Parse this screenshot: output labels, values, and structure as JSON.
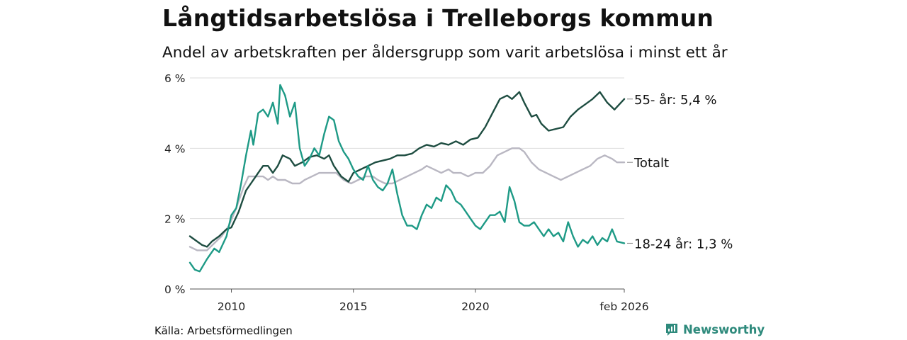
{
  "title": "Långtidsarbetslösa i Trelleborgs kommun",
  "subtitle": "Andel av arbetskraften per åldersgrupp som varit arbetslösa i minst ett år",
  "source": "Källa: Arbetsförmedlingen",
  "brand": "Newsworthy",
  "colors": {
    "age55": "#1e4d41",
    "total": "#b9b7c2",
    "age1824": "#1e9a86",
    "grid": "#dddddd",
    "brand": "#2e8a7c"
  },
  "chart_data": {
    "type": "line",
    "xlabel": "",
    "ylabel": "",
    "ylim": [
      0,
      6
    ],
    "xlim": [
      2008.3,
      2026.1
    ],
    "grid": true,
    "y_ticks": [
      0,
      2,
      4,
      6
    ],
    "y_tick_labels": [
      "0 %",
      "2 %",
      "4 %",
      "6 %"
    ],
    "x_ticks": [
      2010,
      2015,
      2020,
      2026.1
    ],
    "x_tick_labels": [
      "2010",
      "2015",
      "2020",
      "feb 2026"
    ],
    "series": [
      {
        "name": "Totalt",
        "end_label": "Totalt",
        "color": "#b9b7c2",
        "points": [
          [
            2008.3,
            1.2
          ],
          [
            2008.6,
            1.1
          ],
          [
            2009.0,
            1.1
          ],
          [
            2009.3,
            1.3
          ],
          [
            2009.6,
            1.5
          ],
          [
            2009.9,
            1.8
          ],
          [
            2010.2,
            2.3
          ],
          [
            2010.5,
            2.9
          ],
          [
            2010.7,
            3.2
          ],
          [
            2011.0,
            3.2
          ],
          [
            2011.3,
            3.2
          ],
          [
            2011.5,
            3.1
          ],
          [
            2011.7,
            3.2
          ],
          [
            2011.9,
            3.1
          ],
          [
            2012.2,
            3.1
          ],
          [
            2012.5,
            3.0
          ],
          [
            2012.8,
            3.0
          ],
          [
            2013.0,
            3.1
          ],
          [
            2013.3,
            3.2
          ],
          [
            2013.6,
            3.3
          ],
          [
            2014.0,
            3.3
          ],
          [
            2014.3,
            3.3
          ],
          [
            2014.6,
            3.1
          ],
          [
            2014.9,
            3.0
          ],
          [
            2015.2,
            3.1
          ],
          [
            2015.5,
            3.2
          ],
          [
            2015.8,
            3.2
          ],
          [
            2016.0,
            3.1
          ],
          [
            2016.3,
            3.0
          ],
          [
            2016.6,
            3.0
          ],
          [
            2016.9,
            3.1
          ],
          [
            2017.2,
            3.2
          ],
          [
            2017.5,
            3.3
          ],
          [
            2017.8,
            3.4
          ],
          [
            2018.0,
            3.5
          ],
          [
            2018.3,
            3.4
          ],
          [
            2018.6,
            3.3
          ],
          [
            2018.9,
            3.4
          ],
          [
            2019.1,
            3.3
          ],
          [
            2019.4,
            3.3
          ],
          [
            2019.7,
            3.2
          ],
          [
            2020.0,
            3.3
          ],
          [
            2020.3,
            3.3
          ],
          [
            2020.6,
            3.5
          ],
          [
            2020.9,
            3.8
          ],
          [
            2021.2,
            3.9
          ],
          [
            2021.5,
            4.0
          ],
          [
            2021.8,
            4.0
          ],
          [
            2022.0,
            3.9
          ],
          [
            2022.3,
            3.6
          ],
          [
            2022.6,
            3.4
          ],
          [
            2022.9,
            3.3
          ],
          [
            2023.2,
            3.2
          ],
          [
            2023.5,
            3.1
          ],
          [
            2023.8,
            3.2
          ],
          [
            2024.1,
            3.3
          ],
          [
            2024.4,
            3.4
          ],
          [
            2024.7,
            3.5
          ],
          [
            2025.0,
            3.7
          ],
          [
            2025.3,
            3.8
          ],
          [
            2025.6,
            3.7
          ],
          [
            2025.8,
            3.6
          ],
          [
            2026.1,
            3.6
          ]
        ]
      },
      {
        "name": "55- år",
        "end_label": "55- år: 5,4 %",
        "color": "#1e4d41",
        "points": [
          [
            2008.3,
            1.5
          ],
          [
            2008.5,
            1.4
          ],
          [
            2008.8,
            1.25
          ],
          [
            2009.0,
            1.2
          ],
          [
            2009.2,
            1.35
          ],
          [
            2009.5,
            1.5
          ],
          [
            2009.8,
            1.7
          ],
          [
            2010.0,
            1.75
          ],
          [
            2010.3,
            2.2
          ],
          [
            2010.6,
            2.8
          ],
          [
            2010.8,
            3.0
          ],
          [
            2011.1,
            3.3
          ],
          [
            2011.3,
            3.5
          ],
          [
            2011.5,
            3.5
          ],
          [
            2011.7,
            3.3
          ],
          [
            2011.9,
            3.5
          ],
          [
            2012.1,
            3.8
          ],
          [
            2012.4,
            3.7
          ],
          [
            2012.6,
            3.5
          ],
          [
            2012.9,
            3.6
          ],
          [
            2013.2,
            3.75
          ],
          [
            2013.5,
            3.8
          ],
          [
            2013.8,
            3.7
          ],
          [
            2014.0,
            3.8
          ],
          [
            2014.2,
            3.5
          ],
          [
            2014.5,
            3.2
          ],
          [
            2014.8,
            3.05
          ],
          [
            2015.0,
            3.3
          ],
          [
            2015.3,
            3.4
          ],
          [
            2015.6,
            3.5
          ],
          [
            2015.9,
            3.6
          ],
          [
            2016.2,
            3.65
          ],
          [
            2016.5,
            3.7
          ],
          [
            2016.8,
            3.8
          ],
          [
            2017.1,
            3.8
          ],
          [
            2017.4,
            3.85
          ],
          [
            2017.7,
            4.0
          ],
          [
            2018.0,
            4.1
          ],
          [
            2018.3,
            4.05
          ],
          [
            2018.6,
            4.15
          ],
          [
            2018.9,
            4.1
          ],
          [
            2019.2,
            4.2
          ],
          [
            2019.5,
            4.1
          ],
          [
            2019.8,
            4.25
          ],
          [
            2020.1,
            4.3
          ],
          [
            2020.4,
            4.6
          ],
          [
            2020.7,
            5.0
          ],
          [
            2021.0,
            5.4
          ],
          [
            2021.3,
            5.5
          ],
          [
            2021.5,
            5.4
          ],
          [
            2021.8,
            5.6
          ],
          [
            2022.0,
            5.3
          ],
          [
            2022.3,
            4.9
          ],
          [
            2022.5,
            4.95
          ],
          [
            2022.7,
            4.7
          ],
          [
            2023.0,
            4.5
          ],
          [
            2023.3,
            4.55
          ],
          [
            2023.6,
            4.6
          ],
          [
            2023.9,
            4.9
          ],
          [
            2024.2,
            5.1
          ],
          [
            2024.5,
            5.25
          ],
          [
            2024.8,
            5.4
          ],
          [
            2025.1,
            5.6
          ],
          [
            2025.4,
            5.3
          ],
          [
            2025.7,
            5.1
          ],
          [
            2026.1,
            5.4
          ]
        ]
      },
      {
        "name": "18-24 år",
        "end_label": "18-24 år: 1,3 %",
        "color": "#1e9a86",
        "points": [
          [
            2008.3,
            0.75
          ],
          [
            2008.5,
            0.55
          ],
          [
            2008.7,
            0.5
          ],
          [
            2009.0,
            0.85
          ],
          [
            2009.3,
            1.15
          ],
          [
            2009.5,
            1.05
          ],
          [
            2009.8,
            1.5
          ],
          [
            2010.0,
            2.1
          ],
          [
            2010.2,
            2.3
          ],
          [
            2010.4,
            3.0
          ],
          [
            2010.6,
            3.8
          ],
          [
            2010.8,
            4.5
          ],
          [
            2010.9,
            4.1
          ],
          [
            2011.1,
            5.0
          ],
          [
            2011.3,
            5.1
          ],
          [
            2011.5,
            4.9
          ],
          [
            2011.7,
            5.3
          ],
          [
            2011.9,
            4.7
          ],
          [
            2012.0,
            5.8
          ],
          [
            2012.2,
            5.5
          ],
          [
            2012.4,
            4.9
          ],
          [
            2012.6,
            5.3
          ],
          [
            2012.8,
            4.0
          ],
          [
            2013.0,
            3.5
          ],
          [
            2013.2,
            3.7
          ],
          [
            2013.4,
            4.0
          ],
          [
            2013.6,
            3.8
          ],
          [
            2013.8,
            4.4
          ],
          [
            2014.0,
            4.9
          ],
          [
            2014.2,
            4.8
          ],
          [
            2014.4,
            4.2
          ],
          [
            2014.6,
            3.9
          ],
          [
            2014.8,
            3.7
          ],
          [
            2015.0,
            3.4
          ],
          [
            2015.2,
            3.2
          ],
          [
            2015.4,
            3.1
          ],
          [
            2015.6,
            3.5
          ],
          [
            2015.8,
            3.1
          ],
          [
            2016.0,
            2.9
          ],
          [
            2016.2,
            2.8
          ],
          [
            2016.4,
            3.0
          ],
          [
            2016.6,
            3.4
          ],
          [
            2016.8,
            2.7
          ],
          [
            2017.0,
            2.1
          ],
          [
            2017.2,
            1.8
          ],
          [
            2017.4,
            1.8
          ],
          [
            2017.6,
            1.7
          ],
          [
            2017.8,
            2.1
          ],
          [
            2018.0,
            2.4
          ],
          [
            2018.2,
            2.3
          ],
          [
            2018.4,
            2.6
          ],
          [
            2018.6,
            2.5
          ],
          [
            2018.8,
            2.95
          ],
          [
            2019.0,
            2.8
          ],
          [
            2019.2,
            2.5
          ],
          [
            2019.4,
            2.4
          ],
          [
            2019.6,
            2.2
          ],
          [
            2019.8,
            2.0
          ],
          [
            2020.0,
            1.8
          ],
          [
            2020.2,
            1.7
          ],
          [
            2020.4,
            1.9
          ],
          [
            2020.6,
            2.1
          ],
          [
            2020.8,
            2.1
          ],
          [
            2021.0,
            2.2
          ],
          [
            2021.2,
            1.9
          ],
          [
            2021.4,
            2.9
          ],
          [
            2021.6,
            2.5
          ],
          [
            2021.8,
            1.9
          ],
          [
            2022.0,
            1.8
          ],
          [
            2022.2,
            1.8
          ],
          [
            2022.4,
            1.9
          ],
          [
            2022.6,
            1.7
          ],
          [
            2022.8,
            1.5
          ],
          [
            2023.0,
            1.7
          ],
          [
            2023.2,
            1.5
          ],
          [
            2023.4,
            1.6
          ],
          [
            2023.6,
            1.35
          ],
          [
            2023.8,
            1.9
          ],
          [
            2024.0,
            1.5
          ],
          [
            2024.2,
            1.2
          ],
          [
            2024.4,
            1.4
          ],
          [
            2024.6,
            1.3
          ],
          [
            2024.8,
            1.5
          ],
          [
            2025.0,
            1.25
          ],
          [
            2025.2,
            1.45
          ],
          [
            2025.4,
            1.35
          ],
          [
            2025.6,
            1.7
          ],
          [
            2025.8,
            1.35
          ],
          [
            2026.1,
            1.3
          ]
        ]
      }
    ]
  }
}
